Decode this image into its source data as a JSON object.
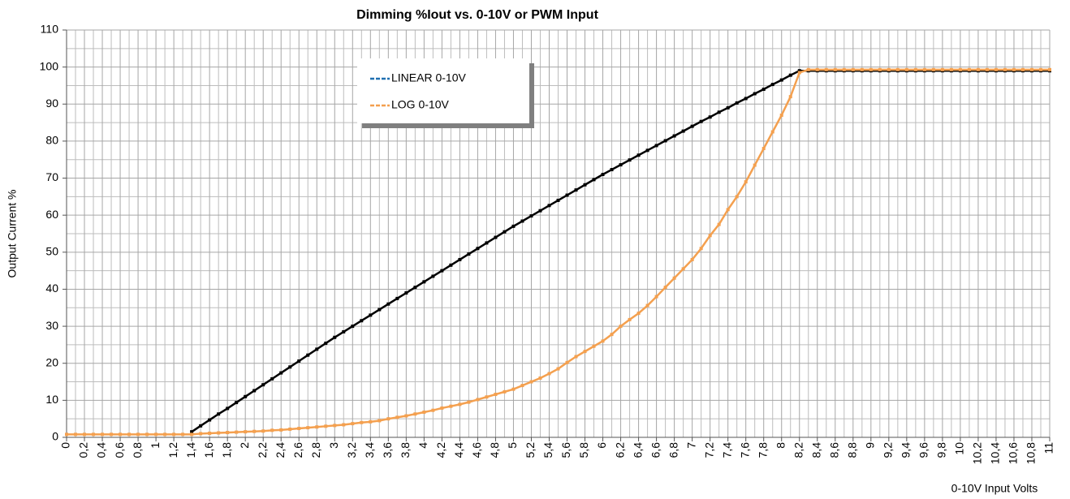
{
  "chart_data": {
    "type": "line",
    "title": "Dimming %Iout vs. 0-10V or PWM Input",
    "x_label": "0-10V Input Volts",
    "y_label": "Output Current %",
    "x": [
      0,
      0.1,
      0.2,
      0.3,
      0.4,
      0.5,
      0.6,
      0.7,
      0.8,
      0.9,
      1,
      1.1,
      1.2,
      1.3,
      1.4,
      1.5,
      1.6,
      1.7,
      1.8,
      1.9,
      2,
      2.1,
      2.2,
      2.3,
      2.4,
      2.5,
      2.6,
      2.7,
      2.8,
      2.9,
      3,
      3.1,
      3.2,
      3.3,
      3.4,
      3.5,
      3.6,
      3.7,
      3.8,
      3.9,
      4,
      4.1,
      4.2,
      4.3,
      4.4,
      4.5,
      4.6,
      4.7,
      4.8,
      4.9,
      5,
      5.1,
      5.2,
      5.3,
      5.4,
      5.5,
      5.6,
      5.7,
      5.8,
      5.9,
      6,
      6.1,
      6.2,
      6.3,
      6.4,
      6.5,
      6.6,
      6.7,
      6.8,
      6.9,
      7,
      7.1,
      7.2,
      7.3,
      7.4,
      7.5,
      7.6,
      7.7,
      7.8,
      7.9,
      8,
      8.1,
      8.2,
      8.3,
      8.4,
      8.5,
      8.6,
      8.7,
      8.8,
      8.9,
      9,
      9.1,
      9.2,
      9.3,
      9.4,
      9.5,
      9.6,
      9.7,
      9.8,
      9.9,
      10,
      10.1,
      10.2,
      10.3,
      10.4,
      10.5,
      10.6,
      10.7,
      10.8,
      10.9,
      11
    ],
    "series": [
      {
        "name": "LINEAR 0-10V",
        "color": "#000000",
        "legend_color": "#1f6fb0",
        "values": [
          null,
          null,
          null,
          null,
          null,
          null,
          null,
          null,
          null,
          null,
          null,
          null,
          null,
          null,
          1.5,
          3.1,
          4.7,
          6.3,
          7.8,
          9.4,
          11,
          12.6,
          14.2,
          15.8,
          17.4,
          19,
          20.6,
          22.2,
          23.8,
          25.4,
          27,
          28.5,
          30,
          31.5,
          33,
          34.5,
          36,
          37.5,
          39,
          40.5,
          42,
          43.5,
          45,
          46.5,
          48,
          49.5,
          51,
          52.5,
          54,
          55.5,
          57,
          58.4,
          59.8,
          61.2,
          62.6,
          64,
          65.4,
          66.8,
          68.2,
          69.6,
          71,
          72.3,
          73.6,
          74.9,
          76.2,
          77.5,
          78.8,
          80.1,
          81.4,
          82.7,
          84,
          85.3,
          86.5,
          87.8,
          89,
          90.3,
          91.5,
          92.8,
          94,
          95.3,
          96.5,
          97.8,
          99,
          99,
          99,
          99,
          99,
          99,
          99,
          99,
          99,
          99,
          99,
          99,
          99,
          99,
          99,
          99,
          99,
          99,
          99,
          99,
          99,
          99,
          99,
          99,
          99,
          99,
          99,
          99,
          99
        ]
      },
      {
        "name": "LOG 0-10V",
        "color": "#f4a04f",
        "legend_color": "#f4a04f",
        "values": [
          0.8,
          0.8,
          0.8,
          0.8,
          0.8,
          0.8,
          0.8,
          0.8,
          0.8,
          0.8,
          0.8,
          0.8,
          0.8,
          0.8,
          0.8,
          1.0,
          1.1,
          1.2,
          1.3,
          1.4,
          1.5,
          1.6,
          1.7,
          1.9,
          2.0,
          2.2,
          2.4,
          2.6,
          2.8,
          3.0,
          3.2,
          3.4,
          3.7,
          4.0,
          4.2,
          4.5,
          5.0,
          5.4,
          5.8,
          6.3,
          6.8,
          7.3,
          7.9,
          8.4,
          8.9,
          9.5,
          10.2,
          10.9,
          11.6,
          12.3,
          13.0,
          14.0,
          15.0,
          16.0,
          17.2,
          18.5,
          20.2,
          21.8,
          23.2,
          24.6,
          26.0,
          27.8,
          30.0,
          31.8,
          33.5,
          35.6,
          38.0,
          40.5,
          43.0,
          45.5,
          48.0,
          51.0,
          54.5,
          57.5,
          61.5,
          65.0,
          69.0,
          73.5,
          78.0,
          82.5,
          87.0,
          92.0,
          98.5,
          99.3,
          99.3,
          99.3,
          99.3,
          99.3,
          99.3,
          99.3,
          99.3,
          99.3,
          99.3,
          99.3,
          99.3,
          99.3,
          99.3,
          99.3,
          99.3,
          99.3,
          99.3,
          99.3,
          99.3,
          99.3,
          99.3,
          99.3,
          99.3,
          99.3,
          99.3,
          99.3,
          99.3
        ]
      }
    ],
    "xlim": [
      0,
      11
    ],
    "ylim": [
      0,
      110
    ],
    "xticks": [
      0,
      {
        "value": 0.2,
        "label": "0,2"
      },
      {
        "value": 0.4,
        "label": "0,4"
      },
      {
        "value": 0.6,
        "label": "0,6"
      },
      {
        "value": 0.8,
        "label": "0,8"
      },
      1,
      {
        "value": 1.2,
        "label": "1,2"
      },
      {
        "value": 1.4,
        "label": "1,4"
      },
      {
        "value": 1.6,
        "label": "1,6"
      },
      {
        "value": 1.8,
        "label": "1,8"
      },
      2,
      {
        "value": 2.2,
        "label": "2,2"
      },
      {
        "value": 2.4,
        "label": "2,4"
      },
      {
        "value": 2.6,
        "label": "2,6"
      },
      {
        "value": 2.8,
        "label": "2,8"
      },
      3,
      {
        "value": 3.2,
        "label": "3,2"
      },
      {
        "value": 3.4,
        "label": "3,4"
      },
      {
        "value": 3.6,
        "label": "3,6"
      },
      {
        "value": 3.8,
        "label": "3,8"
      },
      4,
      {
        "value": 4.2,
        "label": "4,2"
      },
      {
        "value": 4.4,
        "label": "4,4"
      },
      {
        "value": 4.6,
        "label": "4,6"
      },
      {
        "value": 4.8,
        "label": "4,8"
      },
      5,
      {
        "value": 5.2,
        "label": "5,2"
      },
      {
        "value": 5.4,
        "label": "5,4"
      },
      {
        "value": 5.6,
        "label": "5,6"
      },
      {
        "value": 5.8,
        "label": "5,8"
      },
      6,
      {
        "value": 6.2,
        "label": "6,2"
      },
      {
        "value": 6.4,
        "label": "6,4"
      },
      {
        "value": 6.6,
        "label": "6,6"
      },
      {
        "value": 6.8,
        "label": "6,8"
      },
      7,
      {
        "value": 7.2,
        "label": "7,2"
      },
      {
        "value": 7.4,
        "label": "7,4"
      },
      {
        "value": 7.6,
        "label": "7,6"
      },
      {
        "value": 7.8,
        "label": "7,8"
      },
      8,
      {
        "value": 8.2,
        "label": "8,2"
      },
      {
        "value": 8.4,
        "label": "8,4"
      },
      {
        "value": 8.6,
        "label": "8,6"
      },
      {
        "value": 8.8,
        "label": "8,8"
      },
      9,
      {
        "value": 9.2,
        "label": "9,2"
      },
      {
        "value": 9.4,
        "label": "9,4"
      },
      {
        "value": 9.6,
        "label": "9,6"
      },
      {
        "value": 9.8,
        "label": "9,8"
      },
      10,
      {
        "value": 10.2,
        "label": "10,2"
      },
      {
        "value": 10.4,
        "label": "10,4"
      },
      {
        "value": 10.6,
        "label": "10,6"
      },
      {
        "value": 10.8,
        "label": "10,8"
      },
      11
    ],
    "yticks": [
      0,
      10,
      20,
      30,
      40,
      50,
      60,
      70,
      80,
      90,
      100,
      110
    ],
    "grid": true,
    "minor_grid": true,
    "legend": "upper left"
  }
}
